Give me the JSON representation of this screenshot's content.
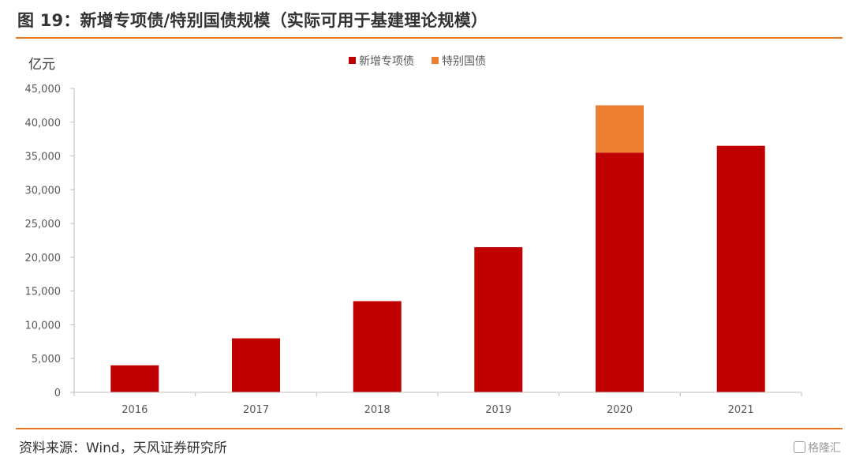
{
  "figure": {
    "title": "图 19：新增专项债/特别国债规模（实际可用于基建理论规模）",
    "source": "资料来源：Wind，天风证券研究所",
    "watermark": "格隆汇"
  },
  "colors": {
    "accent_rule": "#e87722",
    "series_special_bond": "#c00000",
    "series_special_treasury": "#ed7d31",
    "axis": "#bfbfbf",
    "text": "#595959"
  },
  "chart_data": {
    "type": "bar",
    "stacked": true,
    "unit_label": "亿元",
    "categories": [
      "2016",
      "2017",
      "2018",
      "2019",
      "2020",
      "2021"
    ],
    "series": [
      {
        "name": "新增专项债",
        "color": "#c00000",
        "values": [
          4000,
          8000,
          13500,
          21500,
          35500,
          36500
        ]
      },
      {
        "name": "特别国债",
        "color": "#ed7d31",
        "values": [
          0,
          0,
          0,
          0,
          7000,
          0
        ]
      }
    ],
    "ylim": [
      0,
      45000
    ],
    "yticks": [
      "0",
      "5,000",
      "10,000",
      "15,000",
      "20,000",
      "25,000",
      "30,000",
      "35,000",
      "40,000",
      "45,000"
    ],
    "ytick_values": [
      0,
      5000,
      10000,
      15000,
      20000,
      25000,
      30000,
      35000,
      40000,
      45000
    ],
    "grid": false,
    "legend_position": "top-center"
  }
}
